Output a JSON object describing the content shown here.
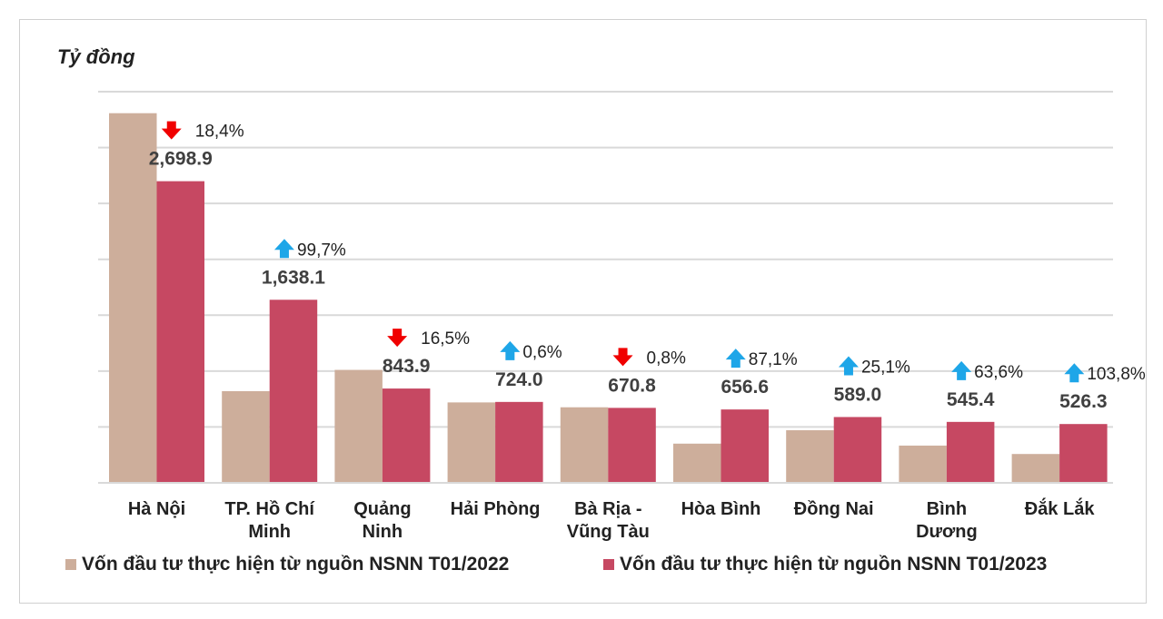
{
  "chart_data": {
    "type": "bar",
    "unit_label": "Tỷ đồng",
    "categories": [
      [
        "Hà Nội"
      ],
      [
        "TP. Hồ Chí",
        "Minh"
      ],
      [
        "Quảng",
        "Ninh"
      ],
      [
        "Hải Phòng"
      ],
      [
        "Bà Rịa -",
        "Vũng Tàu"
      ],
      [
        "Hòa Bình"
      ],
      [
        "Đồng Nai"
      ],
      [
        "Bình",
        "Dương"
      ],
      [
        "Đắk Lắk"
      ]
    ],
    "series": [
      {
        "name": "Vốn đầu tư thực hiện từ nguồn NSNN T01/2022",
        "color": "#cdae9b",
        "values": [
          3307.5,
          820.3,
          1010.7,
          719.7,
          676.2,
          350.9,
          470.8,
          333.4,
          258.2
        ]
      },
      {
        "name": "Vốn đầu tư thực hiện từ nguồn NSNN T01/2023",
        "color": "#c64862",
        "values": [
          2698.9,
          1638.1,
          843.9,
          724.0,
          670.8,
          656.6,
          589.0,
          545.4,
          526.3
        ]
      }
    ],
    "value_labels": [
      "2,698.9",
      "1,638.1",
      "843.9",
      "724.0",
      "670.8",
      "656.6",
      "589.0",
      "545.4",
      "526.3"
    ],
    "change": [
      {
        "dir": "down",
        "label": "18,4%"
      },
      {
        "dir": "up",
        "label": "99,7%"
      },
      {
        "dir": "down",
        "label": "16,5%"
      },
      {
        "dir": "up",
        "label": "0,6%"
      },
      {
        "dir": "down",
        "label": "0,8%"
      },
      {
        "dir": "up",
        "label": "87,1%"
      },
      {
        "dir": "up",
        "label": "25,1%"
      },
      {
        "dir": "up",
        "label": "63,6%"
      },
      {
        "dir": "up",
        "label": "103,8%"
      }
    ],
    "arrow_colors": {
      "up": "#1ea6e8",
      "down": "#f00000"
    },
    "ylim": [
      0,
      3500
    ],
    "ytick_step": 500,
    "y_tick_labels_shown": false,
    "grid": true,
    "legend_position": "bottom"
  }
}
